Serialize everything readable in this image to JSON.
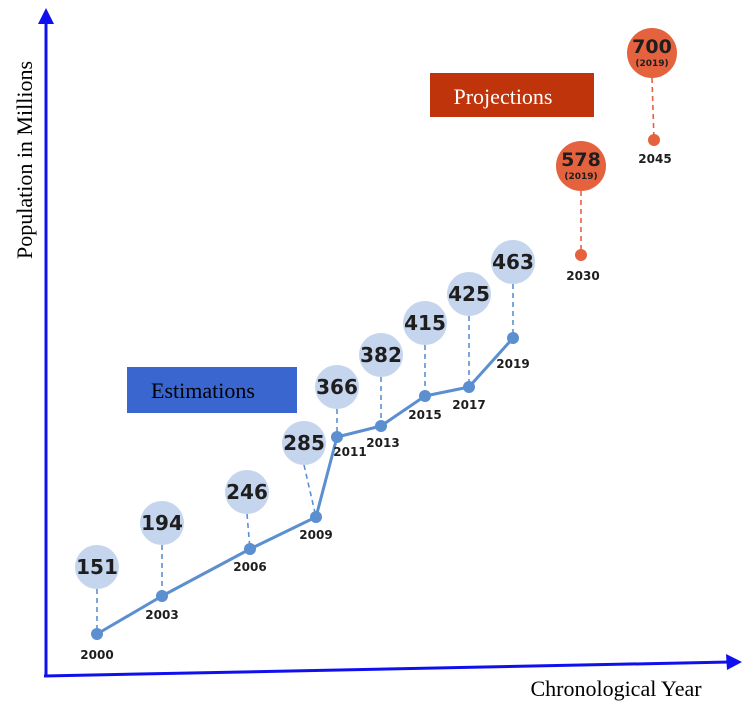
{
  "chart_data": {
    "type": "line",
    "xlabel": "Chronological Year",
    "ylabel": "Population in Millions",
    "series": [
      {
        "name": "Estimations",
        "color": "#5b8fd0",
        "bubble_color": "#c5d5ee",
        "x": [
          2000,
          2003,
          2006,
          2009,
          2011,
          2013,
          2015,
          2017,
          2019
        ],
        "values": [
          151,
          194,
          246,
          285,
          366,
          382,
          415,
          425,
          463
        ],
        "labels": [
          "151",
          "194",
          "246",
          "285",
          "366",
          "382",
          "415",
          "425",
          "463"
        ]
      },
      {
        "name": "Projections",
        "color": "#e5623e",
        "bubble_color": "#e5623e",
        "x": [
          2030,
          2045
        ],
        "values": [
          578,
          700
        ],
        "labels": [
          "578",
          "700"
        ],
        "sublabels": [
          "(2019)",
          "(2019)"
        ]
      }
    ],
    "legend": [
      {
        "label": "Estimations",
        "box_color": "#3a66d0",
        "text_color": "#000000"
      },
      {
        "label": "Projections",
        "box_color": "#c0340c",
        "text_color": "#ffffff"
      }
    ],
    "axis_color": "#1010ee"
  }
}
